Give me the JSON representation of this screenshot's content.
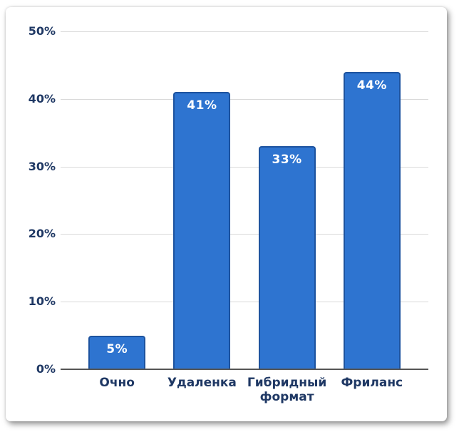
{
  "chart_data": {
    "type": "bar",
    "title": "",
    "categories": [
      "Очно",
      "Удаленка",
      "Гибридный формат",
      "Фриланс"
    ],
    "values": [
      5,
      41,
      33,
      44
    ],
    "data_labels": [
      "5%",
      "41%",
      "33%",
      "44%"
    ],
    "y_ticks": [
      0,
      10,
      20,
      30,
      40,
      50
    ],
    "y_tick_labels": [
      "0%",
      "10%",
      "20%",
      "30%",
      "40%",
      "50%"
    ],
    "ylim": [
      0,
      50
    ],
    "xlabel": "",
    "ylabel": "",
    "grid": "horizontal",
    "legend": "none",
    "colors": {
      "bar_fill": "#2E74D0",
      "bar_border": "#1D539F",
      "bar_label_text": "#FFFFFF",
      "axis_text": "#1F3864",
      "gridline": "#D9D9D9",
      "axis_line": "#555555",
      "card_background": "#FFFFFF"
    }
  }
}
